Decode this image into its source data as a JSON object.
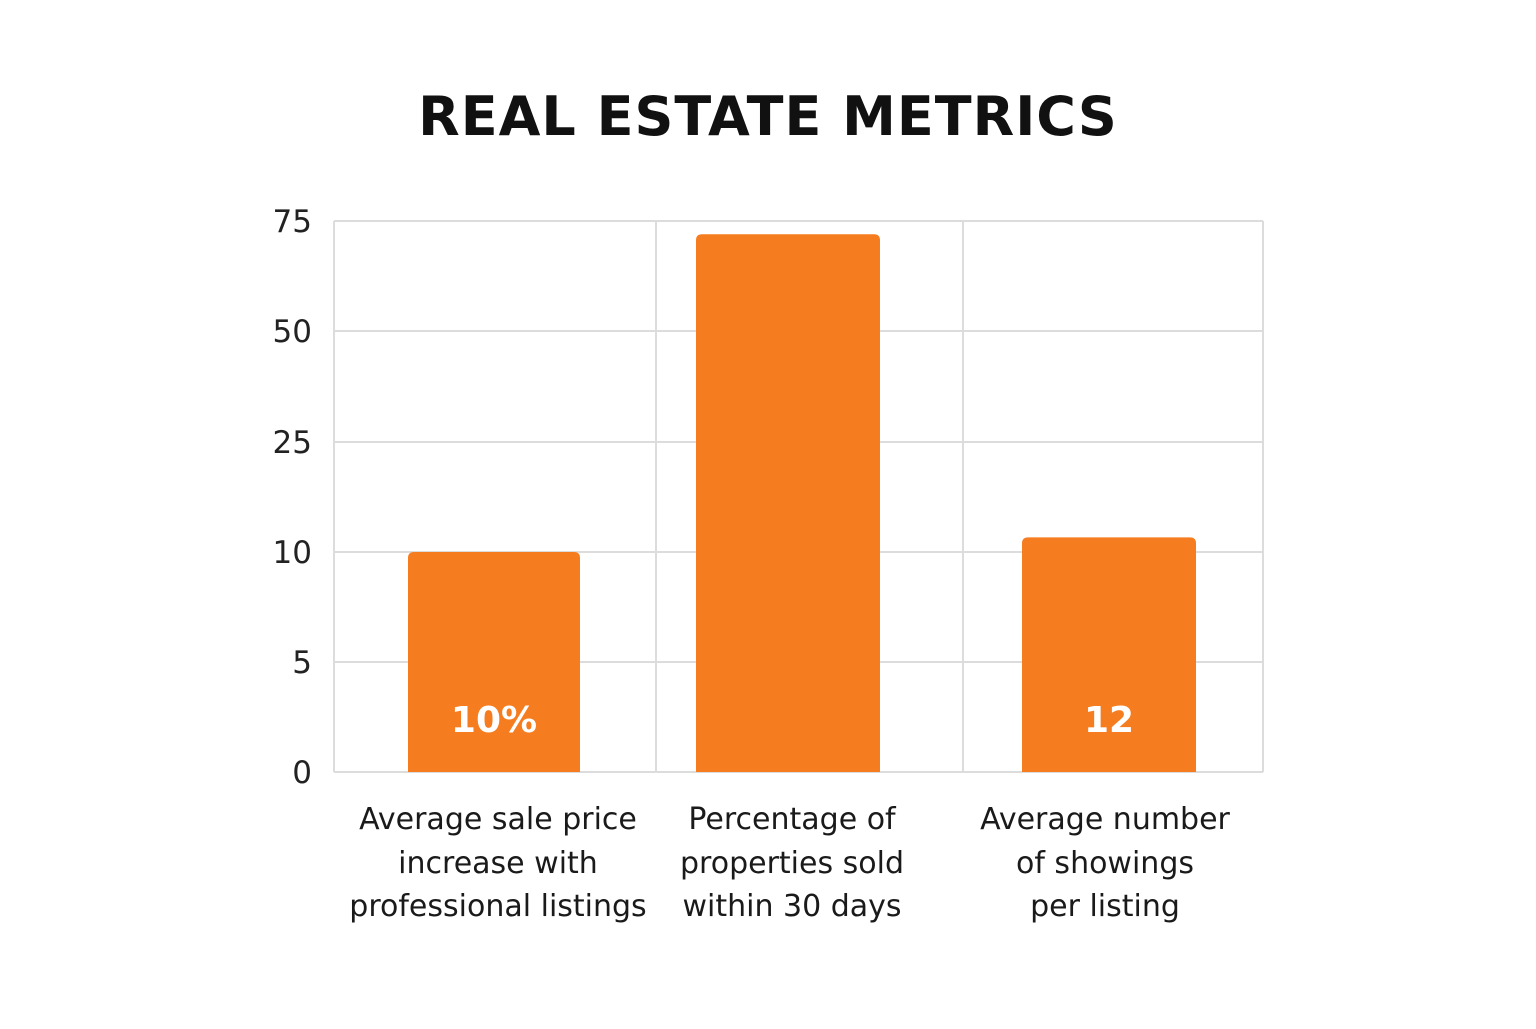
{
  "chart_data": {
    "type": "bar",
    "title": "REAL ESTATE METRICS",
    "xlabel": "",
    "ylabel": "",
    "y_ticks": [
      "0",
      "5",
      "10",
      "25",
      "50",
      "75"
    ],
    "y_scale": "categorical-spaced ticks (uneven: 0, 5, 10, 25, 50, 75)",
    "categories": [
      [
        "Average sale price",
        "increase with",
        "professional listings"
      ],
      [
        "Percentage of",
        "properties sold",
        "within 30 days"
      ],
      [
        "Average number",
        "of showings",
        "per listing"
      ]
    ],
    "values": [
      10,
      72,
      12
    ],
    "data_labels": [
      "10%",
      "",
      "12"
    ],
    "bar_color": "#f57c1f",
    "grid": true,
    "legend": "none"
  }
}
